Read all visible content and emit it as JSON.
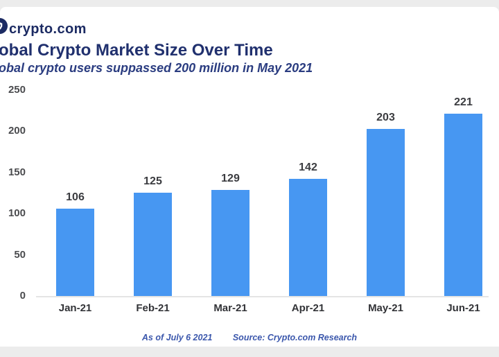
{
  "header": {
    "brand": "crypto.com"
  },
  "chart_data": {
    "type": "bar",
    "title": "obal Crypto Market Size Over Time",
    "subtitle": "obal crypto users suppassed 200 million in May 2021",
    "categories": [
      "Jan-21",
      "Feb-21",
      "Mar-21",
      "Apr-21",
      "May-21",
      "Jun-21"
    ],
    "values": [
      106,
      125,
      129,
      142,
      203,
      221
    ],
    "xlabel": "",
    "ylabel": "",
    "ylim": [
      0,
      250
    ],
    "yticks": [
      0,
      50,
      100,
      150,
      200,
      250
    ],
    "grid": false,
    "legend": false,
    "data_labels": true,
    "bar_color": "#4797f2"
  },
  "footer": {
    "as_of": "As of July 6 2021",
    "source": "Source: Crypto.com Research"
  },
  "colors": {
    "brand_navy": "#1c2b63",
    "title_navy": "#20306e",
    "bar_blue": "#4797f2",
    "footer_blue": "#3b57ac",
    "value_label_gray": "#3b3c40",
    "axis_label_gray": "#4a4b4e",
    "page_background": "#ececec",
    "card_background": "#ffffff"
  },
  "icons": {
    "logo": "crypto-com-lion-icon"
  }
}
